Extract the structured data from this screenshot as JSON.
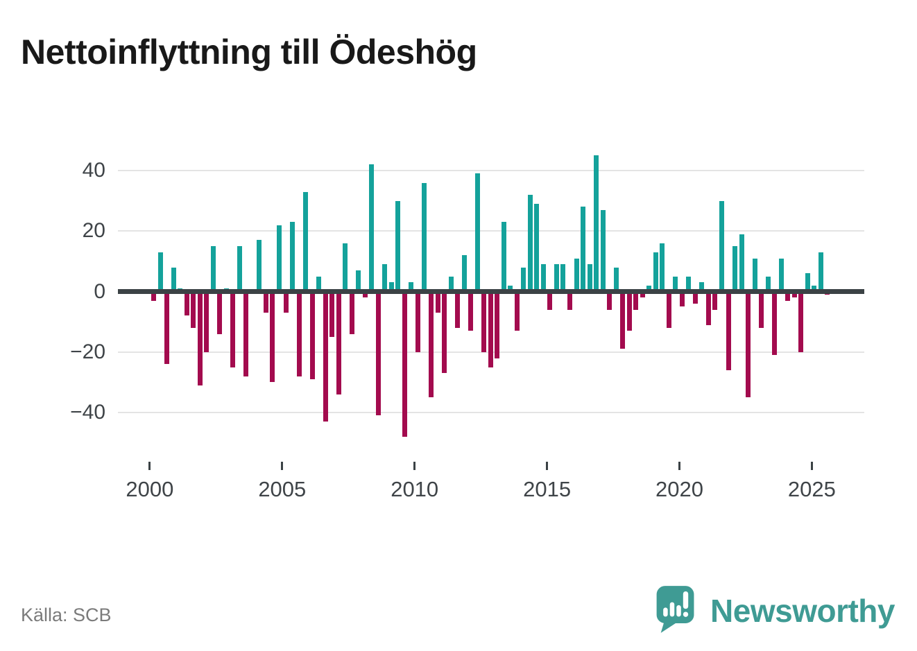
{
  "title": "Nettoinflyttning till Ödeshög",
  "source": "Källa: SCB",
  "logo": {
    "brand": "Newsworthy",
    "icon": "newsworthy-speech-bubble-bar-chart-icon"
  },
  "colors": {
    "positive_bar": "#14a29b",
    "negative_bar": "#a30b4e",
    "axis": "#3b4245",
    "gridline": "#e4e4e4",
    "tick_label": "#3f4448",
    "title_text": "#191919",
    "source_text": "#7b7b7b",
    "logo_teal": "#3f9b94",
    "background": "#ffffff"
  },
  "chart_data": {
    "type": "bar",
    "title": "Nettoinflyttning till Ödeshög",
    "xlabel": "",
    "ylabel": "",
    "frequency": "quarterly",
    "start_period": "2000 Q1",
    "end_period": "2025 Q3",
    "x_tick_years": [
      2000,
      2005,
      2010,
      2015,
      2020,
      2025
    ],
    "x_tick_labels": [
      "2000",
      "2005",
      "2010",
      "2015",
      "2020",
      "2025"
    ],
    "y_ticks": [
      40,
      20,
      0,
      -20,
      -40
    ],
    "y_tick_labels": [
      "40",
      "20",
      "0",
      "−20",
      "−40"
    ],
    "ylim": [
      -50,
      48
    ],
    "grid": "horizontal",
    "legend": "none",
    "values": [
      -3,
      13,
      -24,
      8,
      1,
      -8,
      -12,
      -31,
      -20,
      15,
      -14,
      1,
      -25,
      15,
      -28,
      0,
      17,
      -7,
      -30,
      22,
      -7,
      23,
      -28,
      33,
      -29,
      5,
      -43,
      -15,
      -34,
      16,
      -14,
      7,
      -2,
      42,
      -41,
      9,
      3,
      30,
      -48,
      3,
      -20,
      36,
      -35,
      -7,
      -27,
      5,
      -12,
      12,
      -13,
      39,
      -20,
      -25,
      -22,
      23,
      2,
      -13,
      8,
      32,
      29,
      9,
      -6,
      9,
      9,
      -6,
      11,
      28,
      9,
      45,
      27,
      -6,
      8,
      -19,
      -13,
      -6,
      -2,
      2,
      13,
      16,
      -12,
      5,
      -5,
      5,
      -4,
      3,
      -11,
      -6,
      30,
      -26,
      15,
      19,
      -35,
      11,
      -12,
      5,
      -21,
      11,
      -3,
      -2,
      -20,
      6,
      2,
      13,
      -1
    ]
  }
}
